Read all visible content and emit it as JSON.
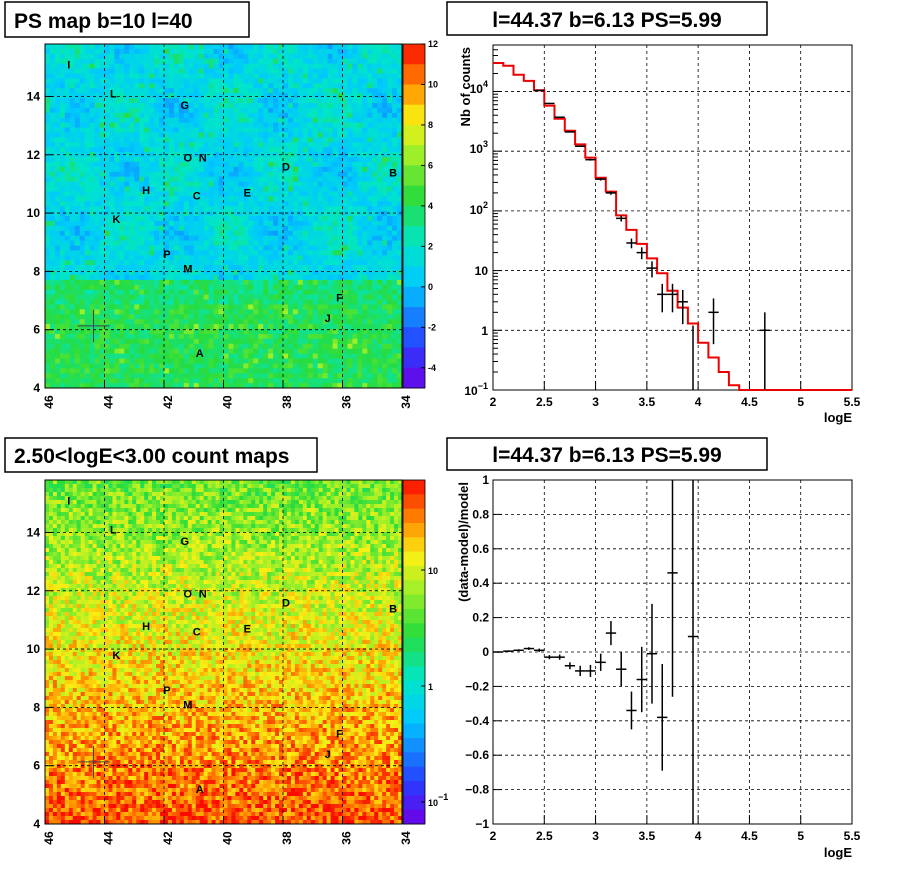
{
  "panels": {
    "tl_title": "PS map b=10 l=40",
    "tr_title": "l=44.37 b=6.13 PS=5.99",
    "bl_title": "2.50<logE<3.00 count maps",
    "br_title": "l=44.37 b=6.13 PS=5.99"
  },
  "chart_data": [
    {
      "type": "heatmap",
      "name": "PS map",
      "title": "PS map b=10 l=40",
      "x_ticks": [
        "46",
        "44",
        "42",
        "40",
        "38",
        "36",
        "34"
      ],
      "x_range": [
        46,
        34
      ],
      "y_ticks": [
        "4",
        "6",
        "8",
        "10",
        "12",
        "14"
      ],
      "y_range": [
        4,
        15.8
      ],
      "colorbar": {
        "range": [
          -5,
          12
        ],
        "ticks": [
          "-4",
          "-2",
          "0",
          "2",
          "4",
          "6",
          "8",
          "10",
          "12"
        ]
      },
      "sources": [
        {
          "label": "I",
          "l": 45.2,
          "b": 15.1
        },
        {
          "label": "L",
          "l": 43.7,
          "b": 14.1
        },
        {
          "label": "G",
          "l": 41.3,
          "b": 13.7
        },
        {
          "label": "O",
          "l": 41.2,
          "b": 11.9
        },
        {
          "label": "N",
          "l": 40.7,
          "b": 11.9
        },
        {
          "label": "D",
          "l": 37.9,
          "b": 11.6
        },
        {
          "label": "B",
          "l": 34.3,
          "b": 11.4
        },
        {
          "label": "H",
          "l": 42.6,
          "b": 10.8
        },
        {
          "label": "C",
          "l": 40.9,
          "b": 10.6
        },
        {
          "label": "E",
          "l": 39.2,
          "b": 10.7
        },
        {
          "label": "K",
          "l": 43.6,
          "b": 9.8
        },
        {
          "label": "P",
          "l": 41.9,
          "b": 8.6
        },
        {
          "label": "M",
          "l": 41.2,
          "b": 8.1
        },
        {
          "label": "F",
          "l": 36.1,
          "b": 7.1
        },
        {
          "label": "J",
          "l": 36.5,
          "b": 6.4
        },
        {
          "label": "A",
          "l": 40.8,
          "b": 5.2
        }
      ],
      "marker": {
        "l": 44.37,
        "b": 6.13
      }
    },
    {
      "type": "line",
      "title": "l=44.37 b=6.13 PS=5.99",
      "xlabel": "logE",
      "ylabel": "Nb of counts",
      "y_scale": "log",
      "xlim": [
        2,
        5.5
      ],
      "ylim": [
        0.1,
        60000
      ],
      "x_ticks": [
        "2",
        "2.5",
        "3",
        "3.5",
        "4",
        "4.5",
        "5",
        "5.5"
      ],
      "y_ticks": [
        {
          "base": "10",
          "exp": "−1"
        },
        {
          "base": "1",
          "exp": ""
        },
        {
          "base": "10",
          "exp": ""
        },
        {
          "base": "10",
          "exp": "2"
        },
        {
          "base": "10",
          "exp": "3"
        },
        {
          "base": "10",
          "exp": "4"
        }
      ],
      "grid": true,
      "model_step": {
        "edges": [
          2.0,
          2.1,
          2.2,
          2.3,
          2.4,
          2.5,
          2.6,
          2.7,
          2.8,
          2.9,
          3.0,
          3.1,
          3.2,
          3.3,
          3.4,
          3.5,
          3.6,
          3.7,
          3.8,
          3.9,
          4.0,
          4.1,
          4.2,
          4.3,
          4.4,
          4.5,
          4.6,
          4.7,
          4.8,
          4.9,
          5.0,
          5.1,
          5.2,
          5.3,
          5.4,
          5.5
        ],
        "values": [
          30000,
          27000,
          19000,
          15000,
          10500,
          5800,
          3500,
          2200,
          1300,
          780,
          360,
          210,
          84,
          48,
          28,
          16,
          9,
          4.6,
          2.4,
          1.3,
          0.62,
          0.35,
          0.2,
          0.12,
          0.1,
          0.1,
          0.1,
          0.1,
          0.1,
          0.1,
          0.1,
          0.1,
          0.1,
          0.1,
          0.1
        ]
      },
      "data_points": [
        {
          "x": 2.45,
          "y": 10400
        },
        {
          "x": 2.55,
          "y": 6300
        },
        {
          "x": 2.65,
          "y": 3700
        },
        {
          "x": 2.75,
          "y": 2100
        },
        {
          "x": 2.85,
          "y": 1210
        },
        {
          "x": 2.95,
          "y": 720
        },
        {
          "x": 3.05,
          "y": 340
        },
        {
          "x": 3.15,
          "y": 200
        },
        {
          "x": 3.25,
          "y": 75
        },
        {
          "x": 3.35,
          "y": 29
        },
        {
          "x": 3.45,
          "y": 20
        },
        {
          "x": 3.55,
          "y": 11
        },
        {
          "x": 3.65,
          "y": 4
        },
        {
          "x": 3.75,
          "y": 4
        },
        {
          "x": 3.85,
          "y": 3
        },
        {
          "x": 3.95,
          "y": 0
        },
        {
          "x": 4.15,
          "y": 2
        },
        {
          "x": 4.65,
          "y": 1
        }
      ]
    },
    {
      "type": "heatmap",
      "name": "count map",
      "title": "2.50<logE<3.00 count maps",
      "x_ticks": [
        "46",
        "44",
        "42",
        "40",
        "38",
        "36",
        "34"
      ],
      "x_range": [
        46,
        34
      ],
      "y_ticks": [
        "4",
        "6",
        "8",
        "10",
        "12",
        "14"
      ],
      "y_range": [
        4,
        15.8
      ],
      "z_scale": "log",
      "colorbar": {
        "ticks": [
          {
            "base": "10",
            "exp": ""
          },
          {
            "base": "1",
            "exp": ""
          },
          {
            "base": "10",
            "exp": "−1"
          }
        ]
      },
      "marker": {
        "l": 44.37,
        "b": 6.13
      }
    },
    {
      "type": "scatter",
      "title": "l=44.37 b=6.13 PS=5.99",
      "xlabel": "logE",
      "ylabel": "(data-model)/model",
      "xlim": [
        2,
        5.5
      ],
      "ylim": [
        -1,
        1
      ],
      "x_ticks": [
        "2",
        "2.5",
        "3",
        "3.5",
        "4",
        "4.5",
        "5",
        "5.5"
      ],
      "y_ticks": [
        "−1",
        "−0.8",
        "−0.6",
        "−0.4",
        "−0.2",
        "0",
        "0.2",
        "0.4",
        "0.6",
        "0.8",
        "1"
      ],
      "grid": true,
      "points": [
        {
          "x": 2.05,
          "y": 0.0,
          "e": 0.004
        },
        {
          "x": 2.15,
          "y": 0.005,
          "e": 0.005
        },
        {
          "x": 2.25,
          "y": 0.01,
          "e": 0.006
        },
        {
          "x": 2.35,
          "y": 0.02,
          "e": 0.008
        },
        {
          "x": 2.45,
          "y": 0.01,
          "e": 0.01
        },
        {
          "x": 2.55,
          "y": -0.03,
          "e": 0.012
        },
        {
          "x": 2.65,
          "y": -0.03,
          "e": 0.015
        },
        {
          "x": 2.75,
          "y": -0.08,
          "e": 0.02
        },
        {
          "x": 2.85,
          "y": -0.11,
          "e": 0.03
        },
        {
          "x": 2.95,
          "y": -0.11,
          "e": 0.035
        },
        {
          "x": 3.05,
          "y": -0.06,
          "e": 0.05
        },
        {
          "x": 3.15,
          "y": 0.11,
          "e": 0.07
        },
        {
          "x": 3.25,
          "y": -0.1,
          "e": 0.1
        },
        {
          "x": 3.35,
          "y": -0.34,
          "e": 0.11
        },
        {
          "x": 3.45,
          "y": -0.16,
          "e": 0.19
        },
        {
          "x": 3.55,
          "y": -0.01,
          "e": 0.29
        },
        {
          "x": 3.65,
          "y": -0.38,
          "e": 0.31
        },
        {
          "x": 3.75,
          "y": 0.46,
          "e": 0.72
        },
        {
          "x": 3.95,
          "y": 0.09,
          "e": 1.1
        }
      ]
    }
  ]
}
